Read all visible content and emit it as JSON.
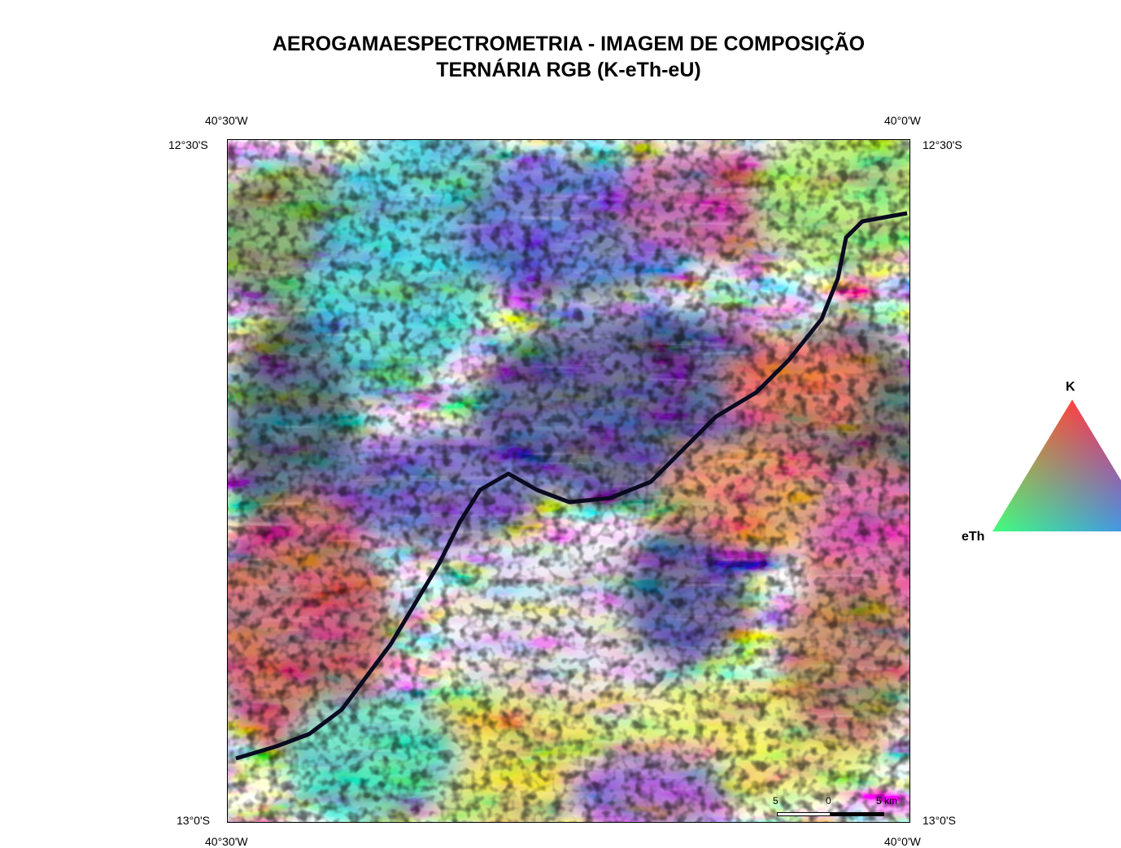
{
  "title": {
    "line1": "AEROGAMAESPECTROMETRIA - IMAGEM DE COMPOSIÇÃO",
    "line2": "TERNÁRIA RGB (K-eTh-eU)"
  },
  "coords": {
    "top_left_lon": "40°30'W",
    "top_right_lon": "40°0'W",
    "bottom_left_lon": "40°30'W",
    "bottom_right_lon": "40°0'W",
    "left_top_lat": "12°30'S",
    "right_top_lat": "12°30'S",
    "left_bottom_lat": "13°0'S",
    "right_bottom_lat": "13°0'S"
  },
  "scale_bar": {
    "left_label": "5",
    "mid_label": "0",
    "right_label": "5 km"
  },
  "legend": {
    "top_label": "K",
    "left_label": "eTh",
    "colors": {
      "K": "#ff0000",
      "eTh": "#00ff00",
      "eU": "#0000ff"
    }
  }
}
